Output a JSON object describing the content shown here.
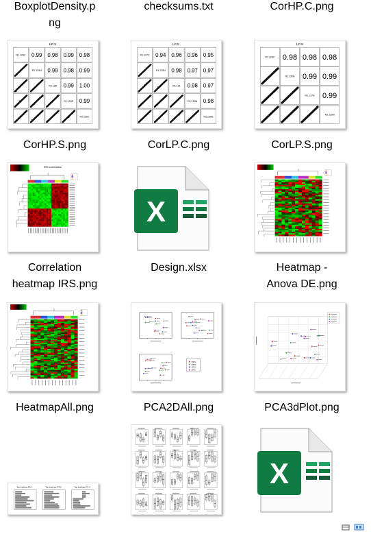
{
  "files": [
    {
      "name": "BoxplotDensity.png",
      "lines": [
        "BoxplotDensity.p",
        "ng"
      ]
    },
    {
      "name": "checksums.txt",
      "lines": [
        "checksums.txt"
      ]
    },
    {
      "name": "CorHP.C.png",
      "lines": [
        "CorHP.C.png"
      ]
    },
    {
      "name": "CorHP.S.png",
      "lines": [
        "CorHP.S.png"
      ]
    },
    {
      "name": "CorLP.C.png",
      "lines": [
        "CorLP.C.png"
      ]
    },
    {
      "name": "CorLP.S.png",
      "lines": [
        "CorLP.S.png"
      ]
    },
    {
      "name": "Correlation heatmap IRS.png",
      "lines": [
        "Correlation",
        "heatmap IRS.png"
      ]
    },
    {
      "name": "Design.xlsx",
      "lines": [
        "Design.xlsx"
      ]
    },
    {
      "name": "Heatmap - Anova DE.png",
      "lines": [
        "Heatmap -",
        "Anova DE.png"
      ]
    },
    {
      "name": "HeatmapAll.png",
      "lines": [
        "HeatmapAll.png"
      ]
    },
    {
      "name": "PCA2DAll.png",
      "lines": [
        "PCA2DAll.png"
      ]
    },
    {
      "name": "PCA3dPlot.png",
      "lines": [
        "PCA3dPlot.png"
      ]
    }
  ],
  "thumbs": {
    "corhp_c": {
      "title": "HP.S",
      "values": [
        "0.99",
        "0.98",
        "0.99",
        "0.98",
        "0.99",
        "0.98",
        "0.99",
        "0.99",
        "1.00",
        "0.99"
      ],
      "diag": [
        "R1.126C",
        "R1.129N",
        "R2.128",
        "R2.129C",
        "R2.130C"
      ]
    },
    "corlp_c": {
      "title": "LP.S",
      "values": [
        "0.94",
        "0.96",
        "0.96",
        "0.95",
        "0.98",
        "0.97",
        "0.97",
        "0.98",
        "0.97",
        "0.98"
      ],
      "diag": [
        "R1.127C",
        "R1.128N",
        "R1.131",
        "R2.129N",
        "R2.130N"
      ]
    },
    "corlp_s": {
      "title": "LP.S",
      "values": [
        "0.98",
        "0.98",
        "0.98",
        "0.99",
        "0.99",
        "0.99"
      ],
      "diag": [
        "R1.126C",
        "R1.130N",
        "R2.127N",
        "R2.129N"
      ]
    },
    "corr_heatmap_title": "IRS correlation",
    "pca_legend": [
      "HP.C",
      "HP.S",
      "LP.C",
      "LP.S"
    ],
    "toploadings": [
      "Top loadings PC 1",
      "Top loadings PC 2",
      "Top loadings PC 3"
    ]
  }
}
